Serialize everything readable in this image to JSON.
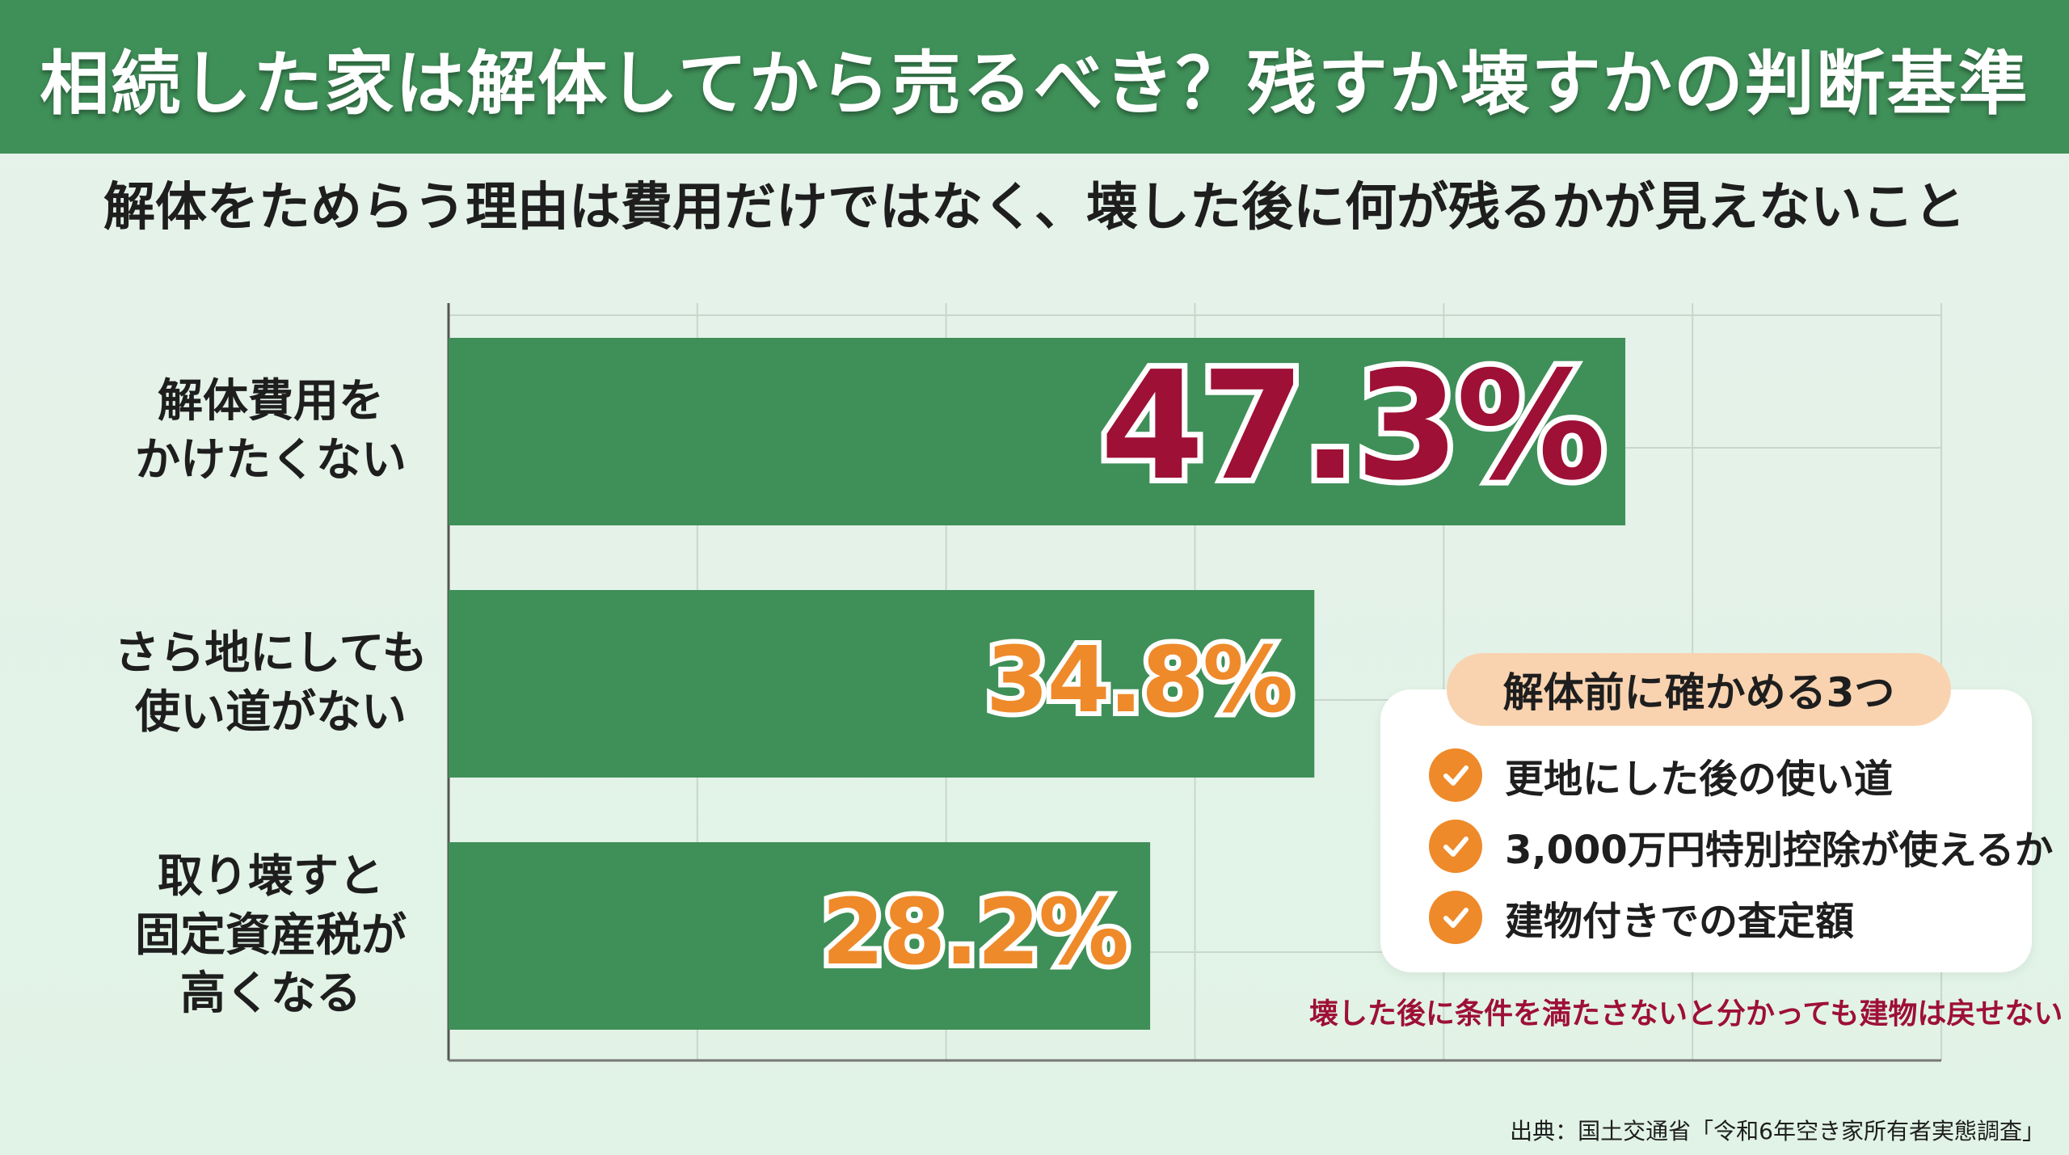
{
  "header": {
    "title": "相続した家は解体してから売るべき？残すか壊すかの判断基準"
  },
  "subtitle": "解体をためらう理由は費用だけではなく、壊した後に何が残るかが見えないこと",
  "chart_data": {
    "type": "bar",
    "orientation": "horizontal",
    "categories": [
      "解体費用を\nかけたくない",
      "さら地にしても\n使い道がない",
      "取り壊すと\n固定資産税が\n高くなる"
    ],
    "values": [
      47.3,
      34.8,
      28.2
    ],
    "value_labels": [
      "47.3%",
      "34.8%",
      "28.2%"
    ],
    "xlim": [
      0,
      60
    ],
    "grid": true,
    "colors": {
      "bar": "#3f8f58",
      "highlight": "#9e1035",
      "secondary": "#ee8a2a"
    }
  },
  "info_box": {
    "title": "解体前に確かめる3つ",
    "items": [
      "更地にした後の使い道",
      "3,000万円特別控除が使えるか",
      "建物付きでの査定額"
    ],
    "icon": "check-circle-icon"
  },
  "note": "壊した後に条件を満たさないと分かっても建物は戻せない",
  "source": "出典：国土交通省「令和6年空き家所有者実態調査」"
}
